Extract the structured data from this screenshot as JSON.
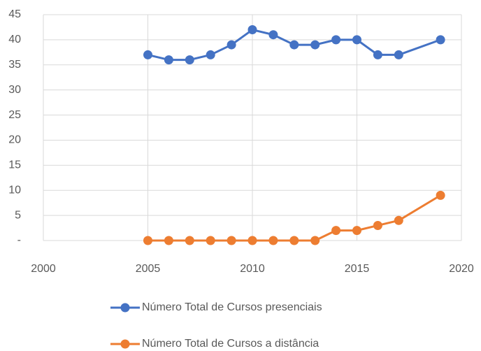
{
  "chart_data": {
    "type": "line",
    "x": [
      2005,
      2006,
      2007,
      2008,
      2009,
      2010,
      2011,
      2012,
      2013,
      2014,
      2015,
      2016,
      2017,
      2019
    ],
    "series": [
      {
        "name": "Número Total de Cursos presenciais",
        "color": "#4472c4",
        "values": [
          37,
          36,
          36,
          37,
          39,
          42,
          41,
          39,
          39,
          40,
          40,
          37,
          37,
          40
        ]
      },
      {
        "name": "Número Total de Cursos a distância",
        "color": "#ed7d31",
        "values": [
          0,
          0,
          0,
          0,
          0,
          0,
          0,
          0,
          0,
          2,
          2,
          3,
          4,
          9
        ]
      }
    ],
    "xlim": [
      2000,
      2020
    ],
    "xticks": [
      2000,
      2005,
      2010,
      2015,
      2020
    ],
    "ylim": [
      0,
      45
    ],
    "yticks": [
      {
        "value": 0,
        "label": "-"
      },
      5,
      10,
      15,
      20,
      25,
      30,
      35,
      40,
      45
    ],
    "grid": true,
    "legend": "bottom"
  }
}
